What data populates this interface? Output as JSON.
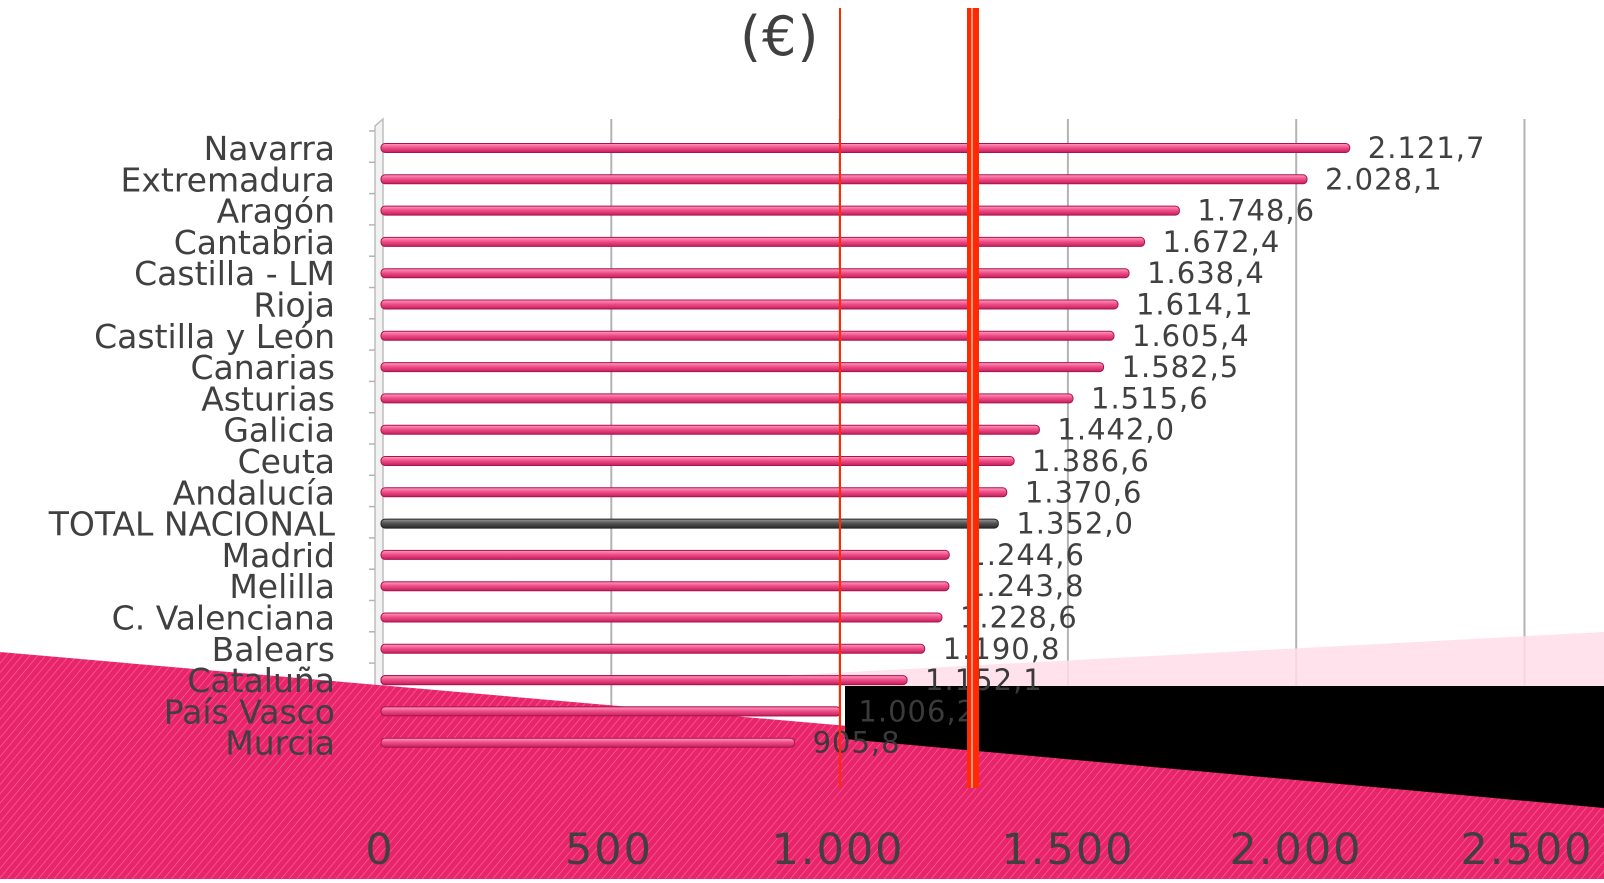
{
  "chart_data": {
    "type": "bar",
    "orientation": "horizontal",
    "title": "(€)",
    "xlim": [
      0,
      2500
    ],
    "x_ticks": [
      "0",
      "500",
      "1.000",
      "1.500",
      "2.000",
      "2.500"
    ],
    "x_tick_values": [
      0,
      500,
      1000,
      1500,
      2000,
      2500
    ],
    "grid": true,
    "categories": [
      "Navarra",
      "Extremadura",
      "Aragón",
      "Cantabria",
      "Castilla - LM",
      "Rioja",
      "Castilla y León",
      "Canarias",
      "Asturias",
      "Galicia",
      "Ceuta",
      "Andalucía",
      "TOTAL NACIONAL",
      "Madrid",
      "Melilla",
      "C. Valenciana",
      "Balears",
      "Cataluña",
      "País Vasco",
      "Murcia"
    ],
    "values": [
      2121.7,
      2028.1,
      1748.6,
      1672.4,
      1638.4,
      1614.1,
      1605.4,
      1582.5,
      1515.6,
      1442.0,
      1386.6,
      1370.6,
      1352.0,
      1244.6,
      1243.8,
      1228.6,
      1190.8,
      1152.1,
      1006.2,
      905.8
    ],
    "value_labels": [
      "2.121,7",
      "2.028,1",
      "1.748,6",
      "1.672,4",
      "1.638,4",
      "1.614,1",
      "1.605,4",
      "1.582,5",
      "1.515,6",
      "1.442,0",
      "1.386,6",
      "1.370,6",
      "1.352,0",
      "1.244,6",
      "1.243,8",
      "1.228,6",
      "1.190,8",
      "1.152,1",
      "1.006,2",
      "905,8"
    ],
    "highlight_category": "TOTAL NACIONAL",
    "colors": {
      "bar": "#f0508a",
      "bar_edge": "#a8144f",
      "highlight": "#555555",
      "reference_lines": "#ff2a00",
      "grid": "#b3b3b3",
      "text": "#404040"
    },
    "reference_lines": [
      1000,
      1290
    ]
  },
  "decor": {
    "band_color": "#e8256a",
    "band_light": "#ffdde8",
    "dark_wedge": "#000000"
  }
}
